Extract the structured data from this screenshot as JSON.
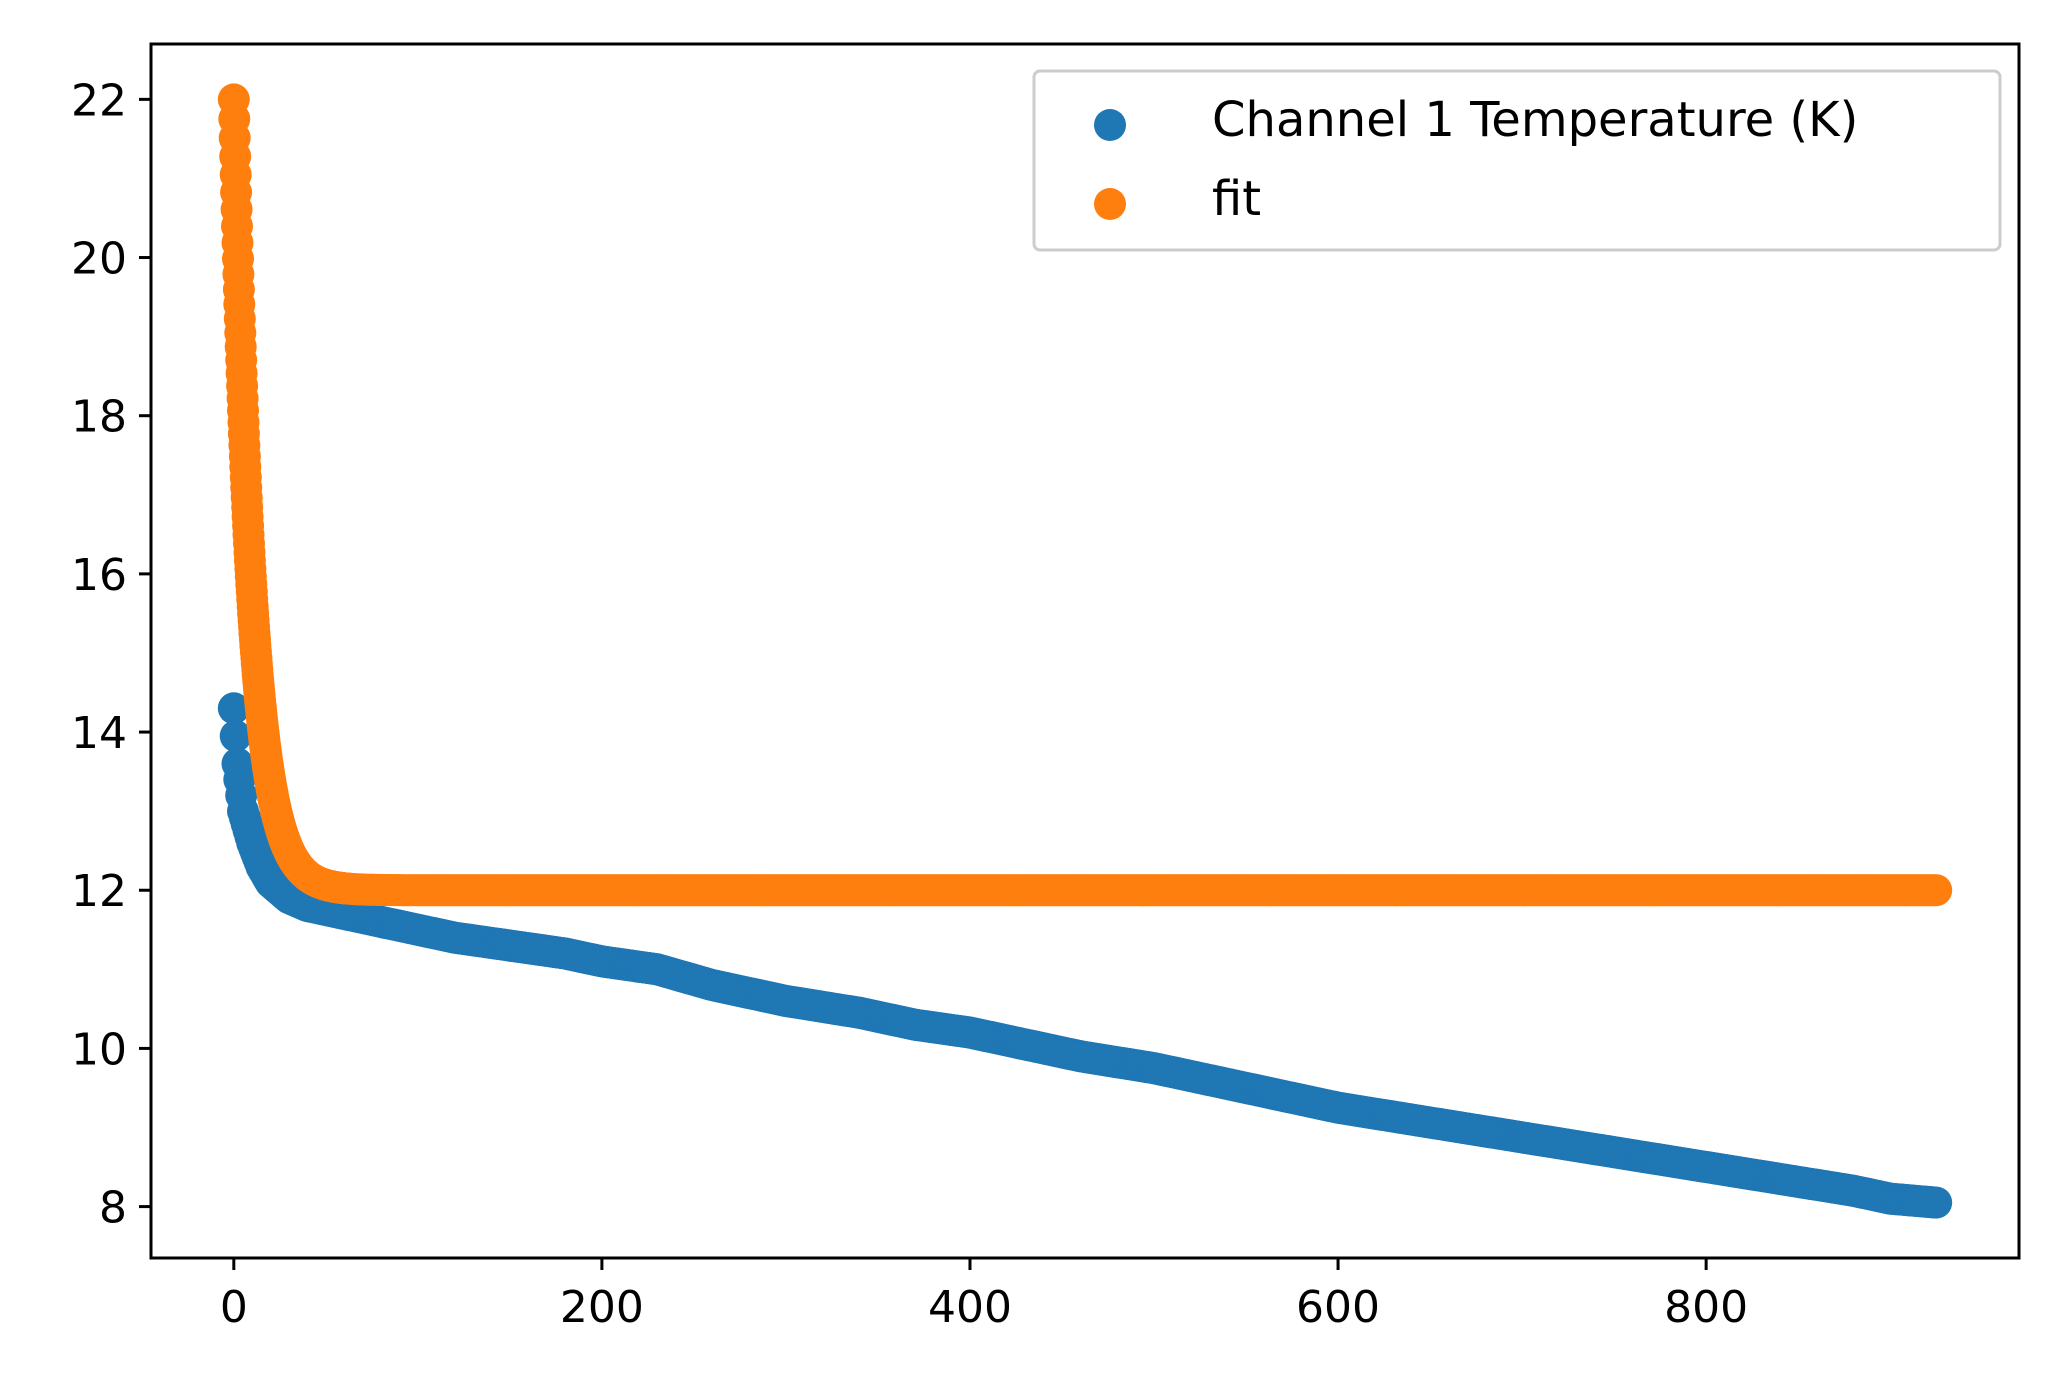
{
  "chart_data": {
    "type": "scatter",
    "title": "",
    "xlabel": "",
    "ylabel": "",
    "xlim": [
      -45,
      970
    ],
    "ylim": [
      7.35,
      22.7
    ],
    "xticks": [
      0,
      200,
      400,
      600,
      800
    ],
    "xtick_labels": [
      "0",
      "200",
      "400",
      "600",
      "800"
    ],
    "yticks": [
      8,
      10,
      12,
      14,
      16,
      18,
      20,
      22
    ],
    "ytick_labels": [
      "8",
      "10",
      "12",
      "14",
      "16",
      "18",
      "20",
      "22"
    ],
    "grid": false,
    "legend_position": "top-right",
    "series": [
      {
        "name": "Channel 1 Temperature (K)",
        "color": "#1f77b4",
        "marker": "circle",
        "x": [
          0,
          2,
          5,
          10,
          15,
          20,
          30,
          40,
          50,
          60,
          80,
          100,
          120,
          150,
          180,
          200,
          230,
          260,
          300,
          340,
          370,
          400,
          430,
          460,
          500,
          540,
          580,
          600,
          640,
          680,
          720,
          760,
          800,
          840,
          880,
          900,
          925
        ],
        "y": [
          14.3,
          13.6,
          13.0,
          12.6,
          12.3,
          12.1,
          11.9,
          11.8,
          11.75,
          11.7,
          11.6,
          11.5,
          11.4,
          11.3,
          11.2,
          11.1,
          11.0,
          10.8,
          10.6,
          10.45,
          10.3,
          10.2,
          10.05,
          9.9,
          9.75,
          9.55,
          9.35,
          9.25,
          9.1,
          8.95,
          8.8,
          8.65,
          8.5,
          8.35,
          8.2,
          8.1,
          8.05
        ]
      },
      {
        "name": "fit",
        "color": "#ff7f0e",
        "marker": "circle",
        "model": "12 + 10 * exp(-x / 10)",
        "x_range": [
          0,
          925
        ]
      }
    ]
  }
}
